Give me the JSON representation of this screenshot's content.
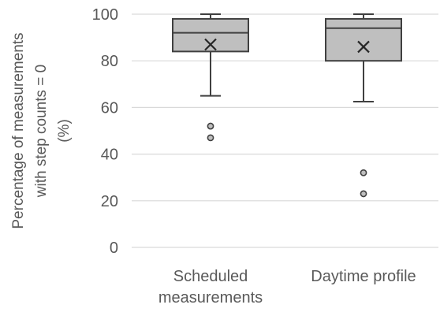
{
  "chart_data": {
    "type": "box",
    "ylabel_lines": [
      "Percentage of measurements",
      "with step counts = 0",
      "(%)"
    ],
    "ylim": [
      0,
      100
    ],
    "yticks": [
      0,
      20,
      40,
      60,
      80,
      100
    ],
    "grid": true,
    "categories": [
      {
        "label_lines": [
          "Scheduled",
          "measurements"
        ]
      },
      {
        "label_lines": [
          "Daytime profile"
        ]
      }
    ],
    "boxes": [
      {
        "whisker_low": 65,
        "q1": 84,
        "median": 92,
        "q3": 98,
        "whisker_high": 100,
        "mean": 87,
        "outliers": [
          52,
          47
        ]
      },
      {
        "whisker_low": 62.5,
        "q1": 80,
        "median": 94,
        "q3": 98,
        "whisker_high": 100,
        "mean": 86,
        "outliers": [
          32,
          23
        ]
      }
    ],
    "colors": {
      "box_fill": "#bfbfbf",
      "stroke": "#404040",
      "grid": "#d9d9d9",
      "text": "#595959"
    }
  }
}
